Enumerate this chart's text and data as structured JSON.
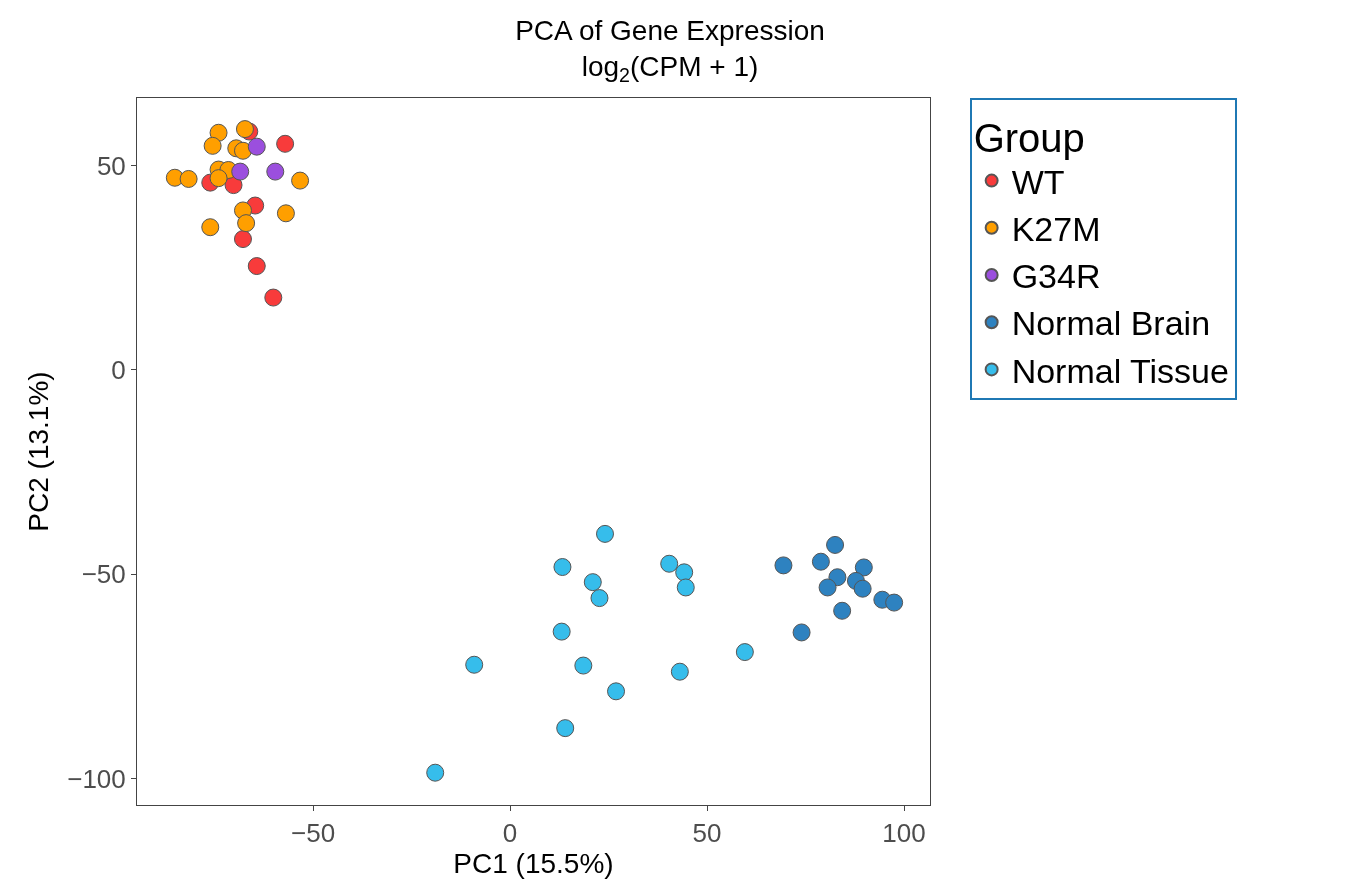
{
  "chart_data": {
    "type": "scatter",
    "title": "PCA of Gene Expression",
    "subtitle": "log$_{2}$(CPM + 1)",
    "xlabel": "PC1 (15.5%)",
    "ylabel": "PC2 (13.1%)",
    "legend_title": "Group",
    "legend": "top right",
    "marker": "circle",
    "xlim": [
      -94.7,
      106.6
    ],
    "ylim": [
      -106.4,
      66.5
    ],
    "xticks": [
      {
        "value": -50,
        "label": "−50"
      },
      0,
      50,
      100
    ],
    "yticks": [
      {
        "value": -100,
        "label": "−100"
      },
      {
        "value": -50,
        "label": "−50"
      },
      0,
      50
    ],
    "series": [
      {
        "name": "WT",
        "color": "#f83b3b",
        "x": [
          -66.2,
          -57.1,
          -76.1,
          -70.2,
          -64.7,
          -67.8,
          -64.3,
          -60.1
        ],
        "values": [
          58.3,
          55.3,
          45.8,
          45.2,
          40.2,
          32.0,
          25.4,
          17.7
        ]
      },
      {
        "name": "K27M",
        "color": "#ff9f00",
        "x": [
          -85.1,
          -81.6,
          -74.0,
          -75.5,
          -67.3,
          -69.5,
          -67.8,
          -74.0,
          -71.5,
          -74.0,
          -53.3,
          -67.8,
          -67.0,
          -56.9,
          -76.1
        ],
        "values": [
          47.0,
          46.7,
          58.0,
          54.8,
          58.9,
          54.2,
          53.6,
          49.0,
          48.9,
          46.9,
          46.3,
          39.0,
          35.9,
          38.3,
          34.9
        ]
      },
      {
        "name": "G34R",
        "color": "#9b4fde",
        "x": [
          -64.3,
          -68.5,
          -59.6
        ],
        "values": [
          54.6,
          48.5,
          48.5
        ]
      },
      {
        "name": "Normal Brain",
        "color": "#2e82c0",
        "x": [
          69.4,
          82.5,
          78.9,
          89.8,
          83.1,
          80.6,
          87.8,
          89.5,
          94.5,
          97.5,
          84.3,
          74.0
        ],
        "values": [
          -47.8,
          -42.8,
          -46.9,
          -48.3,
          -50.7,
          -53.2,
          -51.6,
          -53.5,
          -56.2,
          -56.9,
          -58.9,
          -64.2
        ]
      },
      {
        "name": "Normal Tissue",
        "color": "#36bdeb",
        "x": [
          24.1,
          13.3,
          21.0,
          22.7,
          40.4,
          44.2,
          44.6,
          13.1,
          59.6,
          -9.1,
          18.6,
          43.1,
          26.9,
          14.0,
          -19.0
        ],
        "values": [
          -40.1,
          -48.2,
          -51.9,
          -55.8,
          -47.4,
          -49.5,
          -53.2,
          -64.0,
          -69.0,
          -72.1,
          -72.3,
          -73.8,
          -78.6,
          -87.6,
          -98.5
        ]
      }
    ]
  }
}
